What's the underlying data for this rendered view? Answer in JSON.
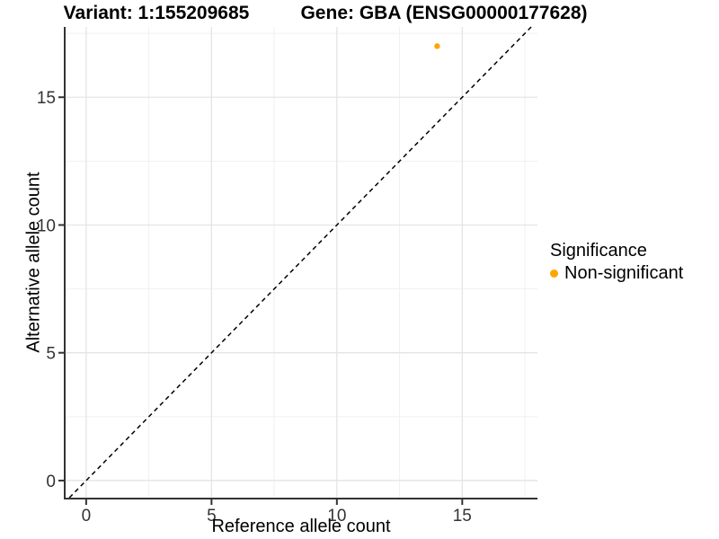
{
  "chart_data": {
    "type": "scatter",
    "titles": [
      "Variant: 1:155209685",
      "Gene: GBA (ENSG00000177628)"
    ],
    "xlabel": "Reference allele count",
    "ylabel": "Alternative allele count",
    "xlim": [
      -0.82,
      18.0
    ],
    "ylim": [
      -0.67,
      17.75
    ],
    "xticks": [
      0,
      5,
      10,
      15
    ],
    "yticks": [
      0,
      5,
      10,
      15
    ],
    "minor_xticks": [
      2.5,
      7.5,
      12.5,
      17.5
    ],
    "minor_yticks": [
      2.5,
      7.5,
      12.5,
      17.5
    ],
    "grid": "major+minor",
    "points": [
      {
        "x": 14,
        "y": 17,
        "significance": "Non-significant"
      }
    ],
    "identity_line": {
      "slope": 1,
      "intercept": 0,
      "style": "dashed"
    },
    "legend": {
      "title": "Significance",
      "position": "right",
      "items": [
        {
          "label": "Non-significant",
          "color": "#FFA500"
        }
      ]
    }
  },
  "colors": {
    "point": "#FFA500",
    "identity_line": "#000000",
    "axis": "#333333",
    "tick_text": "#333333",
    "grid_major": "#e4e4e4",
    "grid_minor": "#f0f0f0",
    "background": "#ffffff"
  }
}
